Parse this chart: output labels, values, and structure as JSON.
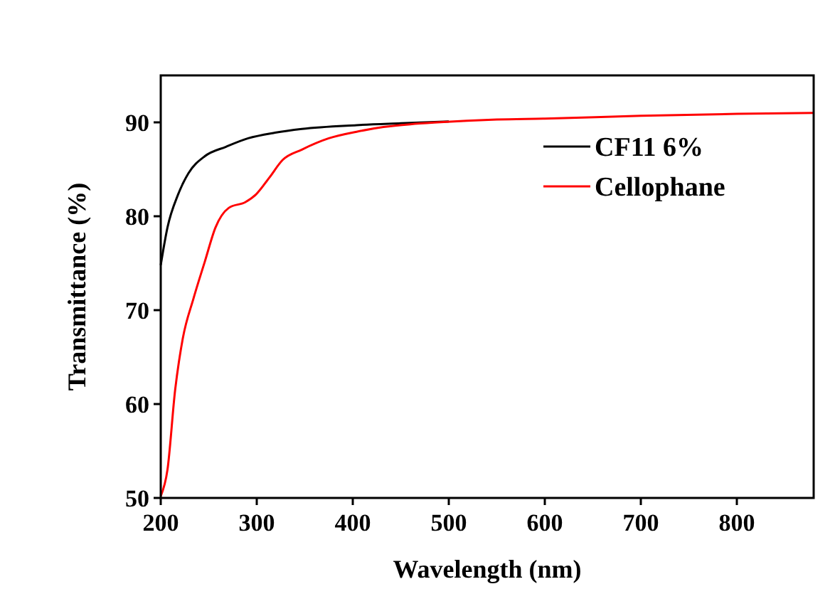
{
  "chart_data": {
    "type": "line",
    "xlabel": "Wavelength (nm)",
    "ylabel": "Transmittance (%)",
    "xlim": [
      200,
      880
    ],
    "ylim": [
      50,
      95
    ],
    "xticks": [
      200,
      300,
      400,
      500,
      600,
      700,
      800
    ],
    "yticks": [
      50,
      60,
      70,
      80,
      90
    ],
    "legend": "top right",
    "grid": false,
    "series": [
      {
        "name": "CF11 6%",
        "color": "#000000",
        "x": [
          200,
          207,
          218,
          229,
          246,
          268,
          291,
          319,
          347,
          404,
          450,
          500
        ],
        "values": [
          74.8,
          78.8,
          82.3,
          84.6,
          86.4,
          87.4,
          88.3,
          88.9,
          89.3,
          89.7,
          89.9,
          90.1
        ]
      },
      {
        "name": "Cellophane",
        "color": "#ff0000",
        "x": [
          200,
          207,
          215,
          223,
          234,
          246,
          257,
          271,
          288,
          299,
          313,
          327,
          347,
          375,
          404,
          432,
          460,
          488,
          550,
          600,
          700,
          800,
          880
        ],
        "values": [
          50.2,
          53,
          61.5,
          67,
          71.2,
          75.2,
          78.8,
          80.9,
          81.5,
          82.3,
          84.1,
          86,
          87.1,
          88.3,
          89,
          89.5,
          89.8,
          90,
          90.3,
          90.4,
          90.7,
          90.9,
          91
        ]
      }
    ]
  }
}
